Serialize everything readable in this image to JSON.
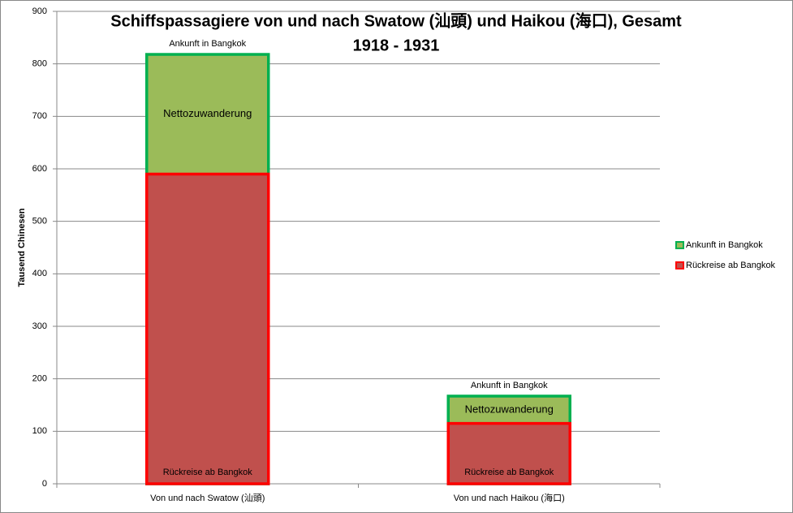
{
  "chart_data": {
    "type": "bar",
    "overlap": true,
    "title": [
      "Schiffspassagiere von und nach Swatow (汕頭) und Haikou (海口), Gesamt",
      "1918 - 1931"
    ],
    "y_label": "Tausend Chinesen",
    "categories": [
      "Von und nach Swatow (汕頭)",
      "Von und nach Haikou (海口)"
    ],
    "series": [
      {
        "name": "Ankunft in Bangkok",
        "color": "#9bbb59",
        "edge_color": "#00b050",
        "values": [
          818,
          167
        ]
      },
      {
        "name": "Rückreise ab Bangkok",
        "color": "#c0504d",
        "edge_color": "#ff0000",
        "values": [
          590,
          115
        ]
      }
    ],
    "annotation": "Nettozuwanderung",
    "ylim": [
      0,
      900
    ],
    "yticks": [
      0,
      100,
      200,
      300,
      400,
      500,
      600,
      700,
      800,
      900
    ],
    "grid": true,
    "legend": "right"
  }
}
